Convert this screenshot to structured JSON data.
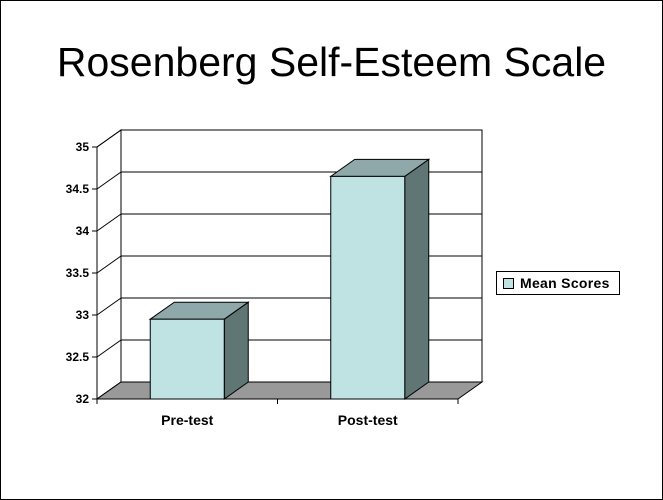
{
  "title": "Rosenberg Self-Esteem Scale",
  "legend": {
    "label": "Mean Scores"
  },
  "colors": {
    "bar_front": "#bfe3e3",
    "bar_top": "#8fa8aa",
    "bar_side": "#5f7675",
    "floor": "#999999"
  },
  "chart_data": {
    "type": "bar",
    "categories": [
      "Pre-test",
      "Post-test"
    ],
    "series": [
      {
        "name": "Mean Scores",
        "values": [
          32.95,
          34.65
        ]
      }
    ],
    "yticks": [
      "32",
      "32.5",
      "33",
      "33.5",
      "34",
      "34.5",
      "35"
    ],
    "ylim": [
      32,
      35
    ],
    "grid": true,
    "legend_position": "right"
  }
}
